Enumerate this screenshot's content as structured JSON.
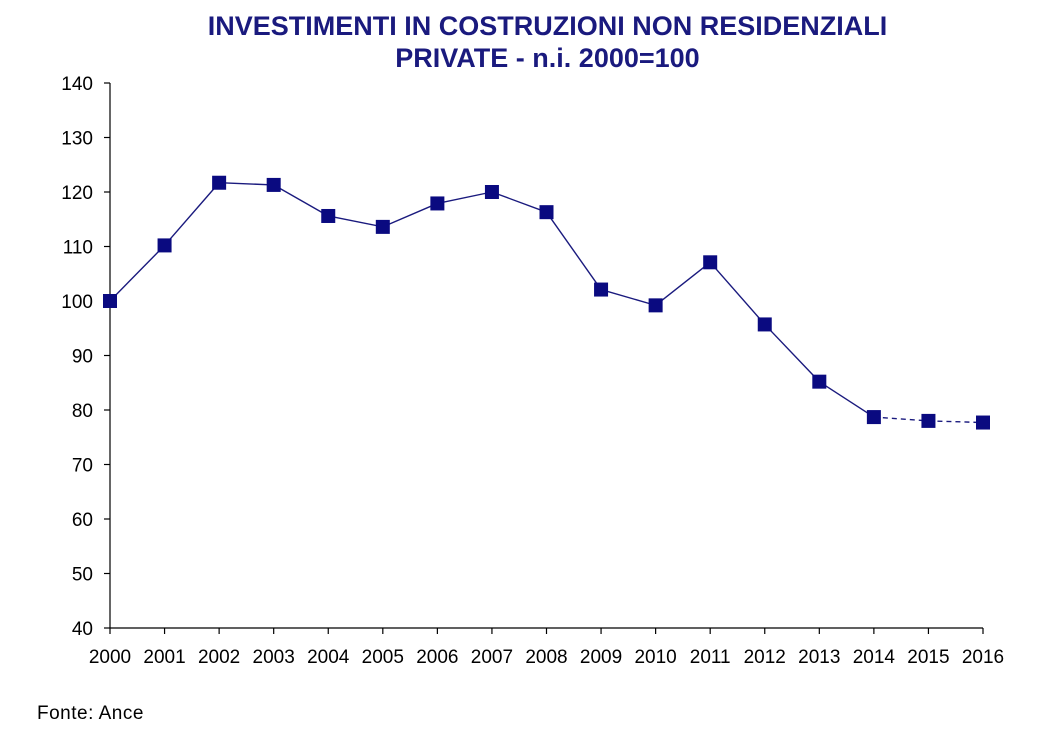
{
  "chart_data": {
    "type": "line",
    "title_line1": "INVESTIMENTI IN COSTRUZIONI NON RESIDENZIALI",
    "title_line2": "PRIVATE - n.i. 2000=100",
    "categories": [
      "2000",
      "2001",
      "2002",
      "2003",
      "2004",
      "2005",
      "2006",
      "2007",
      "2008",
      "2009",
      "2010",
      "2011",
      "2012",
      "2013",
      "2014",
      "2015",
      "2016"
    ],
    "values": [
      100,
      110.2,
      121.7,
      121.3,
      115.6,
      113.6,
      117.9,
      120.0,
      116.3,
      102.1,
      99.2,
      107.1,
      95.7,
      85.2,
      78.7,
      78.0,
      77.7
    ],
    "dashed_from_index": 14,
    "ylim": [
      40,
      140
    ],
    "yticks": [
      40,
      50,
      60,
      70,
      80,
      90,
      100,
      110,
      120,
      130,
      140
    ],
    "xlabel": "",
    "ylabel": "",
    "grid": false,
    "legend": "none",
    "line_color": "#1a1a7e",
    "marker_color": "#0a0a80",
    "title_color": "#1a1a7e"
  },
  "source_note": "Fonte: Ance"
}
